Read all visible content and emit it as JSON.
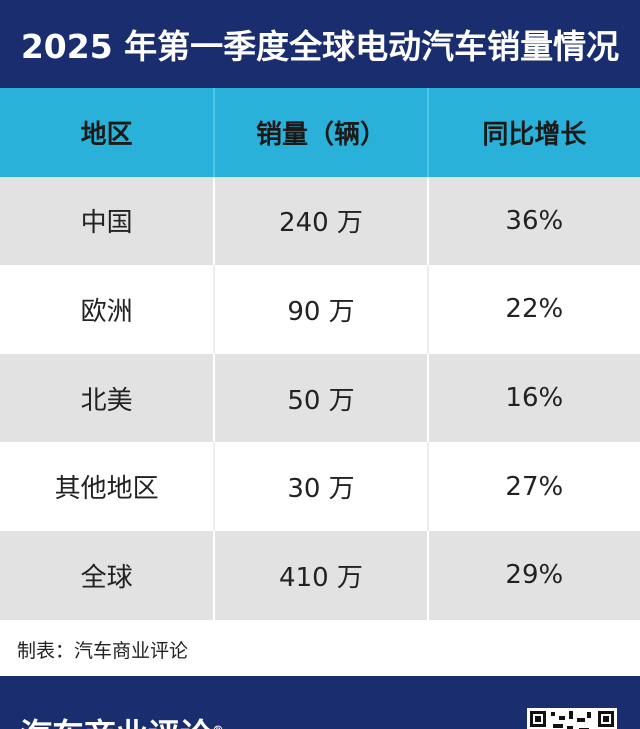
{
  "header": {
    "title": "2025 年第一季度全球电动汽车销量情况"
  },
  "table": {
    "columns": [
      "地区",
      "销量（辆）",
      "同比增长"
    ],
    "rows": [
      [
        "中国",
        "240 万",
        "36%"
      ],
      [
        "欧洲",
        "90 万",
        "22%"
      ],
      [
        "北美",
        "50 万",
        "16%"
      ],
      [
        "其他地区",
        "30 万",
        "27%"
      ],
      [
        "全球",
        "410 万",
        "29%"
      ]
    ]
  },
  "footer": {
    "note": "制表：汽车商业评论",
    "brand": "汽车商业评论",
    "brand_mark": "®"
  }
}
